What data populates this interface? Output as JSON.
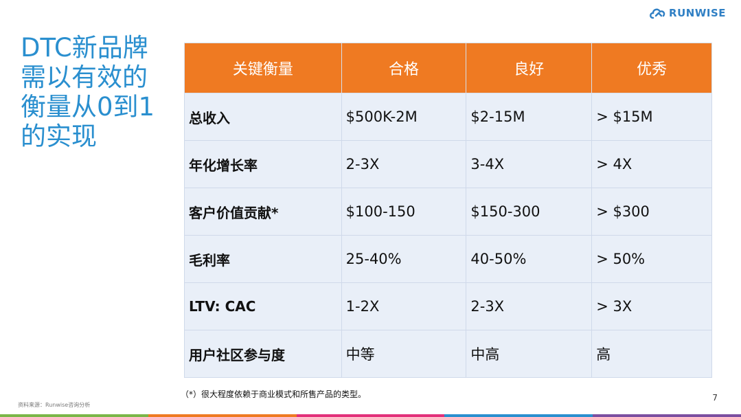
{
  "brand": {
    "logo_text": "RUNWISE"
  },
  "title": "DTC新品牌需以有效的衡量从0到1的实现",
  "table": {
    "headers": [
      "关键衡量",
      "合格",
      "良好",
      "优秀"
    ],
    "rows": [
      [
        "总收入",
        "$500K-2M",
        "$2-15M",
        "> $15M"
      ],
      [
        "年化增长率",
        "2-3X",
        "3-4X",
        "> 4X"
      ],
      [
        "客户价值贡献*",
        "$100-150",
        "$150-300",
        "> $300"
      ],
      [
        "毛利率",
        "25-40%",
        "40-50%",
        "> 50%"
      ],
      [
        "LTV: CAC",
        "1-2X",
        "2-3X",
        "> 3X"
      ],
      [
        "用户社区参与度",
        "中等",
        "中高",
        "高"
      ]
    ]
  },
  "footnote": "（*）很大程度依赖于商业模式和所售产品的类型。",
  "source": "资料来源：Runwise咨询分析",
  "page_number": "7",
  "colors": {
    "header_bg": "#ef7a22",
    "cell_bg": "#e9eff8",
    "title": "#2a8fcf",
    "bottom_bar": [
      "#7ab648",
      "#ef7a22",
      "#e2307a",
      "#2a8fcf",
      "#7c4fa0"
    ]
  }
}
